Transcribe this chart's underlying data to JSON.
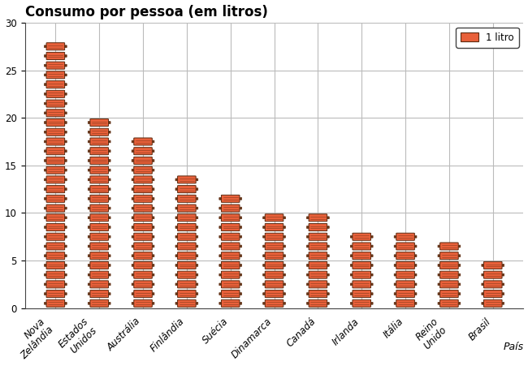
{
  "countries": [
    "Nova\nZelândia",
    "Estados\nUnidos",
    "Austrália",
    "Finlândia",
    "Suécia",
    "Dinamarca",
    "Canadá",
    "Irlanda",
    "Itália",
    "Reino\nUnido",
    "Brasil"
  ],
  "values": [
    28,
    20,
    18,
    14,
    12,
    10,
    10,
    8,
    8,
    7,
    5
  ],
  "bar_color": "#E8603A",
  "bar_color_light": "#EE7A5A",
  "bar_edge_color": "#5C2A10",
  "stick_color": "#6B3A1A",
  "title": "Consumo por pessoa (em litros)",
  "xlabel": "País",
  "ylim": [
    0,
    30
  ],
  "yticks": [
    0,
    5,
    10,
    15,
    20,
    25,
    30
  ],
  "legend_label": "1 litro",
  "bg_color": "#FFFFFF",
  "grid_color": "#BBBBBB",
  "title_fontsize": 12,
  "label_fontsize": 9,
  "tick_fontsize": 8.5
}
